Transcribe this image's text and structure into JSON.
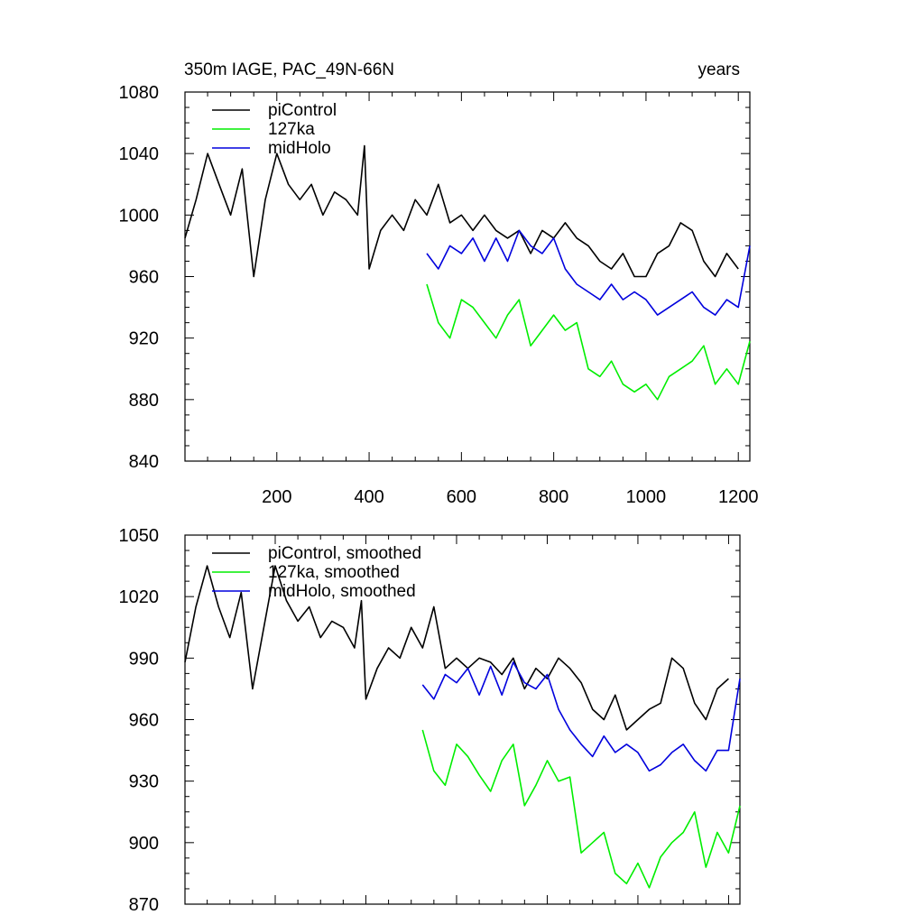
{
  "figure": {
    "title_left": "350m IAGE, PAC_49N-66N",
    "title_right": "years"
  },
  "colors": {
    "piControl": "#000000",
    "127ka": "#00ee00",
    "midHolo": "#0000dd"
  },
  "chart_data": [
    {
      "type": "line",
      "name": "raw",
      "title": "350m IAGE, PAC_49N-66N",
      "xlabel": "",
      "ylabel": "",
      "xlim": [
        1,
        1225
      ],
      "ylim": [
        840,
        1080
      ],
      "yticks": [
        840,
        880,
        920,
        960,
        1000,
        1040,
        1080
      ],
      "ytick_labels": [
        "840",
        "880",
        "920",
        "960",
        "1000",
        "1040",
        "1080"
      ],
      "xticks": [
        200,
        400,
        600,
        800,
        1000,
        1200
      ],
      "xtick_labels": [
        "200",
        "400",
        "600",
        "800",
        "1000",
        "1200"
      ],
      "legend_position": "top-left",
      "legend": [
        "piControl",
        "127ka",
        "midHolo"
      ],
      "series": [
        {
          "name": "piControl",
          "x": [
            1,
            25,
            50,
            75,
            100,
            125,
            150,
            175,
            200,
            225,
            250,
            275,
            300,
            325,
            350,
            375,
            390,
            400,
            425,
            450,
            475,
            500,
            525,
            550,
            575,
            600,
            625,
            650,
            675,
            700,
            725,
            750,
            775,
            800,
            825,
            850,
            875,
            900,
            925,
            950,
            975,
            1000,
            1025,
            1050,
            1075,
            1100,
            1125,
            1150,
            1175,
            1200
          ],
          "values": [
            985,
            1010,
            1040,
            1020,
            1000,
            1030,
            960,
            1010,
            1040,
            1020,
            1010,
            1020,
            1000,
            1015,
            1010,
            1000,
            1045,
            965,
            990,
            1000,
            990,
            1010,
            1000,
            1020,
            995,
            1000,
            990,
            1000,
            990,
            985,
            990,
            975,
            990,
            985,
            995,
            985,
            980,
            970,
            965,
            975,
            960,
            960,
            975,
            980,
            995,
            990,
            970,
            960,
            975,
            965
          ]
        },
        {
          "name": "127ka",
          "x": [
            525,
            550,
            575,
            600,
            625,
            650,
            675,
            700,
            725,
            750,
            775,
            800,
            825,
            850,
            875,
            900,
            925,
            950,
            975,
            1000,
            1025,
            1050,
            1075,
            1100,
            1125,
            1150,
            1175,
            1200,
            1225
          ],
          "values": [
            955,
            930,
            920,
            945,
            940,
            930,
            920,
            935,
            945,
            915,
            925,
            935,
            925,
            930,
            900,
            895,
            905,
            890,
            885,
            890,
            880,
            895,
            900,
            905,
            915,
            890,
            900,
            890,
            918
          ]
        },
        {
          "name": "midHolo",
          "x": [
            525,
            550,
            575,
            600,
            625,
            650,
            675,
            700,
            725,
            750,
            775,
            800,
            825,
            850,
            875,
            900,
            925,
            950,
            975,
            1000,
            1025,
            1050,
            1075,
            1100,
            1125,
            1150,
            1175,
            1200,
            1225
          ],
          "values": [
            975,
            965,
            980,
            975,
            985,
            970,
            985,
            970,
            990,
            980,
            975,
            985,
            965,
            955,
            950,
            945,
            955,
            945,
            950,
            945,
            935,
            940,
            945,
            950,
            940,
            935,
            945,
            940,
            980
          ]
        }
      ]
    },
    {
      "type": "line",
      "name": "smoothed",
      "title": "",
      "xlabel": "",
      "ylabel": "",
      "xlim": [
        1,
        1225
      ],
      "ylim": [
        870,
        1050
      ],
      "yticks": [
        870,
        900,
        930,
        960,
        990,
        1020,
        1050
      ],
      "ytick_labels": [
        "870",
        "900",
        "930",
        "960",
        "990",
        "1020",
        "1050"
      ],
      "xticks": [
        200,
        400,
        600,
        800,
        1000,
        1200
      ],
      "xtick_labels": [],
      "legend_position": "top-left",
      "legend": [
        "piControl, smoothed",
        "127ka, smoothed",
        "midHolo, smoothed"
      ],
      "series": [
        {
          "name": "piControl, smoothed",
          "x": [
            1,
            25,
            50,
            75,
            100,
            125,
            150,
            175,
            200,
            225,
            250,
            275,
            300,
            325,
            350,
            375,
            390,
            400,
            425,
            450,
            475,
            500,
            525,
            550,
            575,
            600,
            625,
            650,
            675,
            700,
            725,
            750,
            775,
            800,
            825,
            850,
            875,
            900,
            925,
            950,
            975,
            1000,
            1025,
            1050,
            1075,
            1100,
            1125,
            1150,
            1175,
            1200
          ],
          "values": [
            988,
            1015,
            1035,
            1015,
            1000,
            1022,
            975,
            1005,
            1035,
            1018,
            1008,
            1015,
            1000,
            1008,
            1005,
            995,
            1018,
            970,
            985,
            995,
            990,
            1005,
            995,
            1015,
            985,
            990,
            985,
            990,
            988,
            982,
            990,
            975,
            985,
            980,
            990,
            985,
            978,
            965,
            960,
            972,
            955,
            960,
            965,
            968,
            990,
            985,
            968,
            960,
            975,
            980
          ]
        },
        {
          "name": "127ka, smoothed",
          "x": [
            525,
            550,
            575,
            600,
            625,
            650,
            675,
            700,
            725,
            750,
            775,
            800,
            825,
            850,
            875,
            900,
            925,
            950,
            975,
            1000,
            1025,
            1050,
            1075,
            1100,
            1125,
            1150,
            1175,
            1200,
            1225
          ],
          "values": [
            955,
            935,
            928,
            948,
            942,
            933,
            925,
            940,
            948,
            918,
            928,
            940,
            930,
            932,
            895,
            900,
            905,
            885,
            880,
            890,
            878,
            893,
            900,
            905,
            915,
            888,
            905,
            895,
            918
          ]
        },
        {
          "name": "midHolo, smoothed",
          "x": [
            525,
            550,
            575,
            600,
            625,
            650,
            675,
            700,
            725,
            750,
            775,
            800,
            825,
            850,
            875,
            900,
            925,
            950,
            975,
            1000,
            1025,
            1050,
            1075,
            1100,
            1125,
            1150,
            1175,
            1200,
            1225
          ],
          "values": [
            977,
            970,
            982,
            978,
            985,
            972,
            986,
            972,
            988,
            978,
            975,
            982,
            965,
            955,
            948,
            942,
            952,
            944,
            948,
            944,
            935,
            938,
            944,
            948,
            940,
            935,
            945,
            945,
            980
          ]
        }
      ]
    }
  ]
}
